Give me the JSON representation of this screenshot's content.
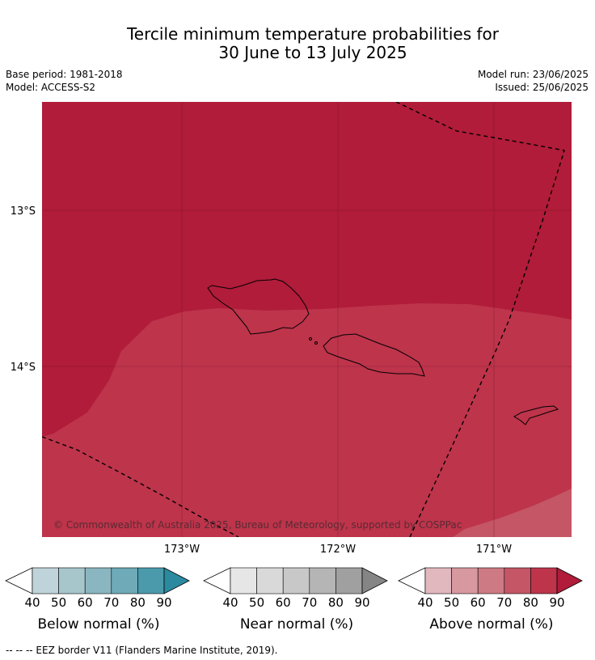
{
  "title_line1": "Tercile minimum temperature probabilities for",
  "title_line2": "30 June to 13 July 2025",
  "base_period": "Base period: 1981-2018",
  "model": "Model: ACCESS-S2",
  "model_run": "Model run: 23/06/2025",
  "issued": "Issued: 25/06/2025",
  "lat_labels": [
    "13°S",
    "14°S"
  ],
  "lon_labels": [
    "173°W",
    "172°W",
    "171°W"
  ],
  "copyright": "© Commonwealth of Australia 2025, Bureau of Meteorology, supported by COSPPac",
  "footer": "--  --  -- EEZ border V11 (Flanders Marine Institute, 2019).",
  "colorbars": [
    {
      "title": "Below normal (%)",
      "ticks": [
        "40",
        "50",
        "60",
        "70",
        "80",
        "90"
      ],
      "colors": [
        "#ffffff",
        "#bfd4da",
        "#a6c6cc",
        "#8ab6c1",
        "#6eaab8",
        "#4b9aac",
        "#2b8aa0"
      ]
    },
    {
      "title": "Near normal (%)",
      "ticks": [
        "40",
        "50",
        "60",
        "70",
        "80",
        "90"
      ],
      "colors": [
        "#ffffff",
        "#e6e6e6",
        "#d9d9d9",
        "#c8c8c8",
        "#b5b5b5",
        "#a0a0a0",
        "#858585"
      ]
    },
    {
      "title": "Above normal (%)",
      "ticks": [
        "40",
        "50",
        "60",
        "70",
        "80",
        "90"
      ],
      "colors": [
        "#ffffff",
        "#e2b8bf",
        "#d7989f",
        "#cd7a84",
        "#c45665",
        "#bd344b",
        "#b01c39"
      ]
    }
  ],
  "map_colors": {
    "above_90": "#b01c39",
    "above_80": "#bd344b",
    "above_70": "#c45665"
  }
}
